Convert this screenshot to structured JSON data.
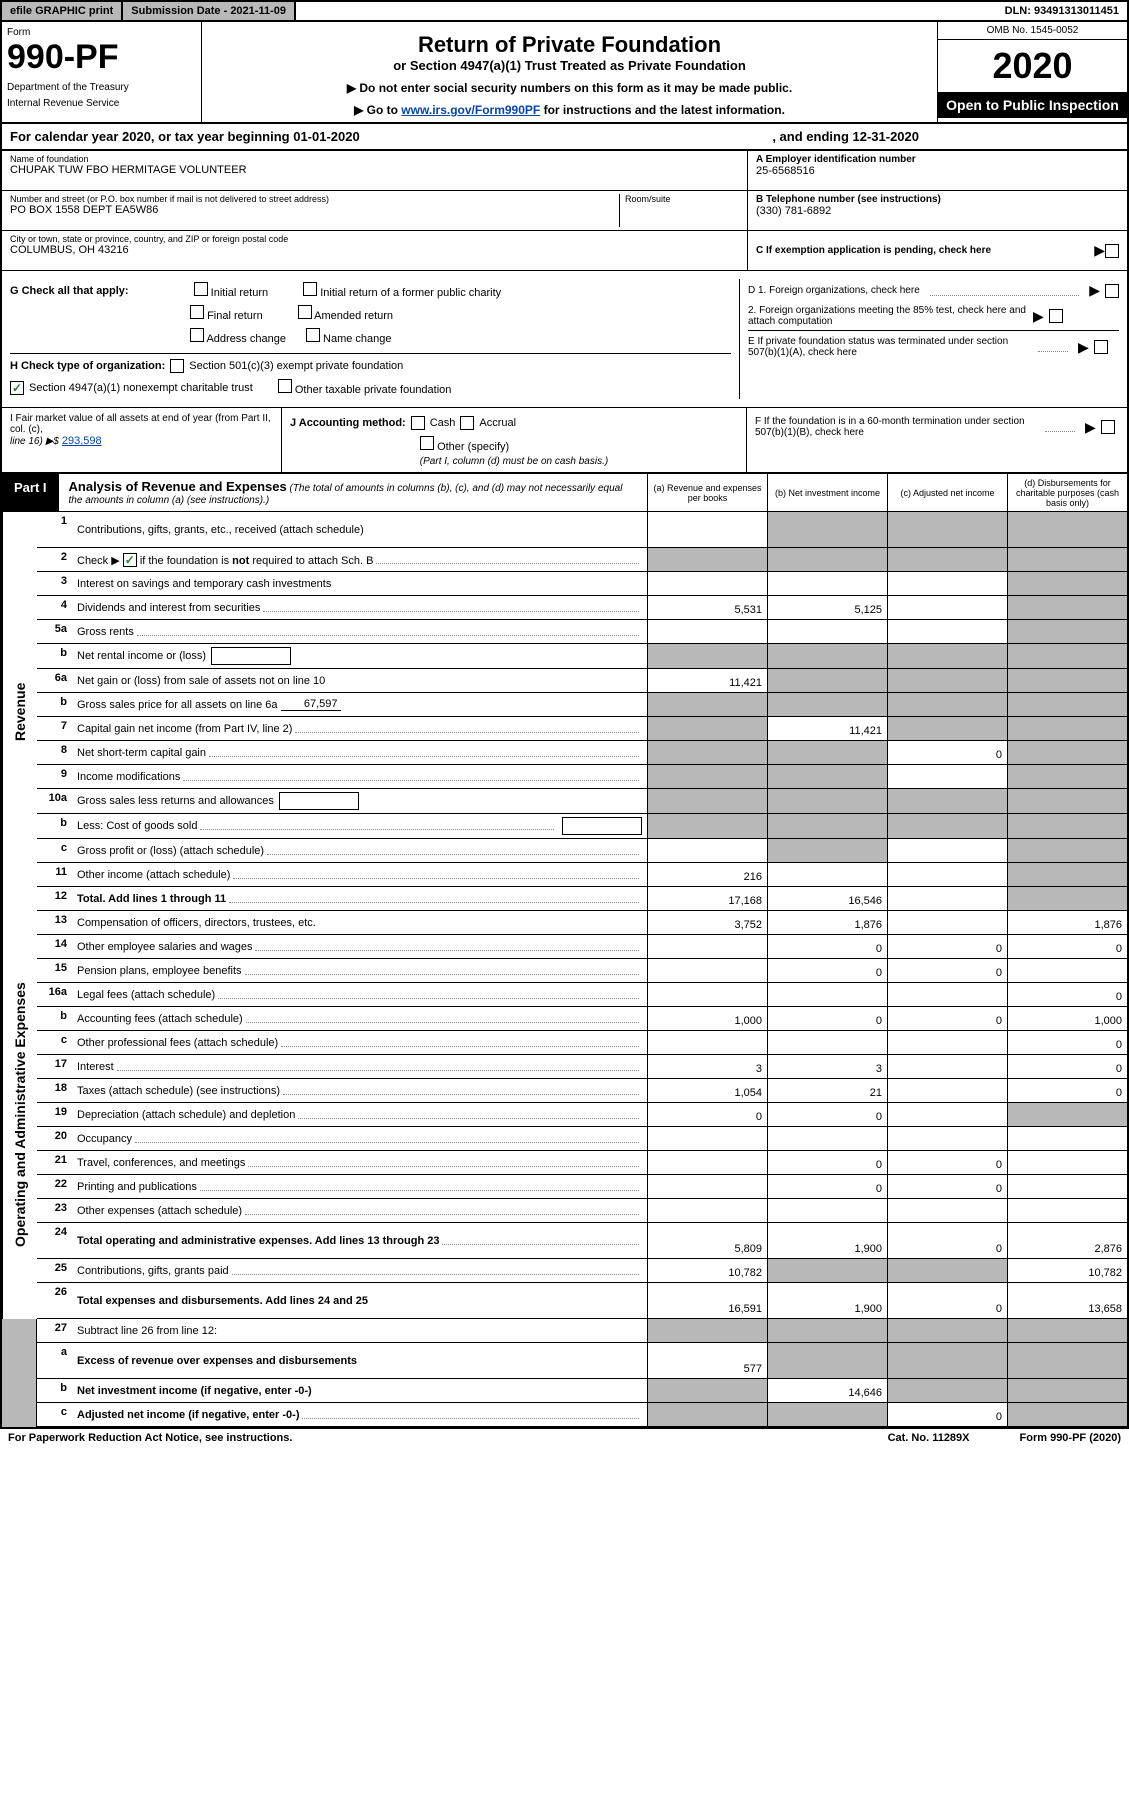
{
  "topbar": {
    "efile_prefix": "efile",
    "efile_rest": " GRAPHIC print",
    "submission": "Submission Date - 2021-11-09",
    "dln": "DLN: 93491313011451"
  },
  "header": {
    "form_label": "Form",
    "form_number": "990-PF",
    "dept1": "Department of the Treasury",
    "dept2": "Internal Revenue Service",
    "title": "Return of Private Foundation",
    "subtitle": "or Section 4947(a)(1) Trust Treated as Private Foundation",
    "note1": "▶ Do not enter social security numbers on this form as it may be made public.",
    "note2_pre": "▶ Go to ",
    "note2_link": "www.irs.gov/Form990PF",
    "note2_post": " for instructions and the latest information.",
    "omb": "OMB No. 1545-0052",
    "year": "2020",
    "open_public": "Open to Public Inspection"
  },
  "calyear": {
    "text": "For calendar year 2020, or tax year beginning 01-01-2020",
    "ending": ", and ending 12-31-2020"
  },
  "info": {
    "name_label": "Name of foundation",
    "name": "CHUPAK TUW FBO HERMITAGE VOLUNTEER",
    "addr_label": "Number and street (or P.O. box number if mail is not delivered to street address)",
    "addr": "PO BOX 1558 DEPT EA5W86",
    "room_label": "Room/suite",
    "city_label": "City or town, state or province, country, and ZIP or foreign postal code",
    "city": "COLUMBUS, OH  43216",
    "ein_label": "A Employer identification number",
    "ein": "25-6568516",
    "phone_label": "B Telephone number (see instructions)",
    "phone": "(330) 781-6892",
    "c_label": "C If exemption application is pending, check here",
    "d1": "D 1. Foreign organizations, check here",
    "d2": "2. Foreign organizations meeting the 85% test, check here and attach computation",
    "e_label": "E  If private foundation status was terminated under section 507(b)(1)(A), check here",
    "f_label": "F  If the foundation is in a 60-month termination under section 507(b)(1)(B), check here"
  },
  "g": {
    "label": "G Check all that apply:",
    "opts": [
      "Initial return",
      "Initial return of a former public charity",
      "Final return",
      "Amended return",
      "Address change",
      "Name change"
    ]
  },
  "h": {
    "label": "H Check type of organization:",
    "opt1": "Section 501(c)(3) exempt private foundation",
    "opt2": "Section 4947(a)(1) nonexempt charitable trust",
    "opt3": "Other taxable private foundation"
  },
  "i": {
    "label": "I Fair market value of all assets at end of year (from Part II, col. (c),",
    "line": "line 16) ▶$",
    "value": "293,598"
  },
  "j": {
    "label": "J Accounting method:",
    "cash": "Cash",
    "accrual": "Accrual",
    "other": "Other (specify)",
    "note": "(Part I, column (d) must be on cash basis.)"
  },
  "part1": {
    "label": "Part I",
    "title": "Analysis of Revenue and Expenses",
    "title_note": " (The total of amounts in columns (b), (c), and (d) may not necessarily equal the amounts in column (a) (see instructions).)",
    "col_a": "(a)   Revenue and expenses per books",
    "col_b": "(b)   Net investment income",
    "col_c": "(c)   Adjusted net income",
    "col_d": "(d)   Disbursements for charitable purposes (cash basis only)"
  },
  "revenue_label": "Revenue",
  "lines_rev": [
    {
      "num": "1",
      "label": "Contributions, gifts, grants, etc., received (attach schedule)",
      "tall": true,
      "a": "",
      "b": "grey",
      "c": "grey",
      "d": "grey"
    },
    {
      "num": "2",
      "label": "Check ▶ [✓] if the foundation is not required to attach Sch. B",
      "checkbox": true,
      "dots": true,
      "a": "grey",
      "b": "grey",
      "c": "grey",
      "d": "grey"
    },
    {
      "num": "3",
      "label": "Interest on savings and temporary cash investments",
      "a": "",
      "b": "",
      "c": "",
      "d": "grey"
    },
    {
      "num": "4",
      "label": "Dividends and interest from securities",
      "dots": true,
      "a": "5,531",
      "b": "5,125",
      "c": "",
      "d": "grey"
    },
    {
      "num": "5a",
      "label": "Gross rents",
      "dots": true,
      "a": "",
      "b": "",
      "c": "",
      "d": "grey"
    },
    {
      "num": "b",
      "label": "Net rental income or (loss)",
      "inline_box": "",
      "a": "grey",
      "b": "grey",
      "c": "grey",
      "d": "grey"
    },
    {
      "num": "6a",
      "label": "Net gain or (loss) from sale of assets not on line 10",
      "a": "11,421",
      "b": "grey",
      "c": "grey",
      "d": "grey"
    },
    {
      "num": "b",
      "label": "Gross sales price for all assets on line 6a",
      "inline_line": "67,597",
      "a": "grey",
      "b": "grey",
      "c": "grey",
      "d": "grey"
    },
    {
      "num": "7",
      "label": "Capital gain net income (from Part IV, line 2)",
      "dots": true,
      "a": "grey",
      "b": "11,421",
      "c": "grey",
      "d": "grey"
    },
    {
      "num": "8",
      "label": "Net short-term capital gain",
      "dots": true,
      "a": "grey",
      "b": "grey",
      "c": "0",
      "d": "grey"
    },
    {
      "num": "9",
      "label": "Income modifications",
      "dots": true,
      "a": "grey",
      "b": "grey",
      "c": "",
      "d": "grey"
    },
    {
      "num": "10a",
      "label": "Gross sales less returns and allowances",
      "inline_box": "",
      "a": "grey",
      "b": "grey",
      "c": "grey",
      "d": "grey"
    },
    {
      "num": "b",
      "label": "Less: Cost of goods sold",
      "dots": true,
      "inline_box": "",
      "a": "grey",
      "b": "grey",
      "c": "grey",
      "d": "grey"
    },
    {
      "num": "c",
      "label": "Gross profit or (loss) (attach schedule)",
      "dots": true,
      "a": "",
      "b": "grey",
      "c": "",
      "d": "grey"
    },
    {
      "num": "11",
      "label": "Other income (attach schedule)",
      "dots": true,
      "a": "216",
      "b": "",
      "c": "",
      "d": "grey"
    },
    {
      "num": "12",
      "label": "Total. Add lines 1 through 11",
      "bold": true,
      "dots": true,
      "a": "17,168",
      "b": "16,546",
      "c": "",
      "d": "grey"
    }
  ],
  "expenses_label": "Operating and Administrative Expenses",
  "lines_exp": [
    {
      "num": "13",
      "label": "Compensation of officers, directors, trustees, etc.",
      "a": "3,752",
      "b": "1,876",
      "c": "",
      "d": "1,876"
    },
    {
      "num": "14",
      "label": "Other employee salaries and wages",
      "dots": true,
      "a": "",
      "b": "0",
      "c": "0",
      "d": "0"
    },
    {
      "num": "15",
      "label": "Pension plans, employee benefits",
      "dots": true,
      "a": "",
      "b": "0",
      "c": "0",
      "d": ""
    },
    {
      "num": "16a",
      "label": "Legal fees (attach schedule)",
      "dots": true,
      "a": "",
      "b": "",
      "c": "",
      "d": "0"
    },
    {
      "num": "b",
      "label": "Accounting fees (attach schedule)",
      "dots": true,
      "a": "1,000",
      "b": "0",
      "c": "0",
      "d": "1,000"
    },
    {
      "num": "c",
      "label": "Other professional fees (attach schedule)",
      "dots": true,
      "a": "",
      "b": "",
      "c": "",
      "d": "0"
    },
    {
      "num": "17",
      "label": "Interest",
      "dots": true,
      "a": "3",
      "b": "3",
      "c": "",
      "d": "0"
    },
    {
      "num": "18",
      "label": "Taxes (attach schedule) (see instructions)",
      "dots": true,
      "a": "1,054",
      "b": "21",
      "c": "",
      "d": "0"
    },
    {
      "num": "19",
      "label": "Depreciation (attach schedule) and depletion",
      "dots": true,
      "a": "0",
      "b": "0",
      "c": "",
      "d": "grey"
    },
    {
      "num": "20",
      "label": "Occupancy",
      "dots": true,
      "a": "",
      "b": "",
      "c": "",
      "d": ""
    },
    {
      "num": "21",
      "label": "Travel, conferences, and meetings",
      "dots": true,
      "a": "",
      "b": "0",
      "c": "0",
      "d": ""
    },
    {
      "num": "22",
      "label": "Printing and publications",
      "dots": true,
      "a": "",
      "b": "0",
      "c": "0",
      "d": ""
    },
    {
      "num": "23",
      "label": "Other expenses (attach schedule)",
      "dots": true,
      "a": "",
      "b": "",
      "c": "",
      "d": ""
    },
    {
      "num": "24",
      "label": "Total operating and administrative expenses. Add lines 13 through 23",
      "bold": true,
      "dots": true,
      "tall": true,
      "a": "5,809",
      "b": "1,900",
      "c": "0",
      "d": "2,876"
    },
    {
      "num": "25",
      "label": "Contributions, gifts, grants paid",
      "dots": true,
      "a": "10,782",
      "b": "grey",
      "c": "grey",
      "d": "10,782"
    },
    {
      "num": "26",
      "label": "Total expenses and disbursements. Add lines 24 and 25",
      "bold": true,
      "tall": true,
      "a": "16,591",
      "b": "1,900",
      "c": "0",
      "d": "13,658"
    }
  ],
  "lines_sub": [
    {
      "num": "27",
      "label": "Subtract line 26 from line 12:",
      "a": "grey",
      "b": "grey",
      "c": "grey",
      "d": "grey"
    },
    {
      "num": "a",
      "label": "Excess of revenue over expenses and disbursements",
      "bold": true,
      "tall": true,
      "a": "577",
      "b": "grey",
      "c": "grey",
      "d": "grey"
    },
    {
      "num": "b",
      "label": "Net investment income (if negative, enter -0-)",
      "bold": true,
      "a": "grey",
      "b": "14,646",
      "c": "grey",
      "d": "grey"
    },
    {
      "num": "c",
      "label": "Adjusted net income (if negative, enter -0-)",
      "bold": true,
      "dots": true,
      "a": "grey",
      "b": "grey",
      "c": "0",
      "d": "grey"
    }
  ],
  "footer": {
    "left": "For Paperwork Reduction Act Notice, see instructions.",
    "center": "Cat. No. 11289X",
    "right": "Form 990-PF (2020)"
  }
}
